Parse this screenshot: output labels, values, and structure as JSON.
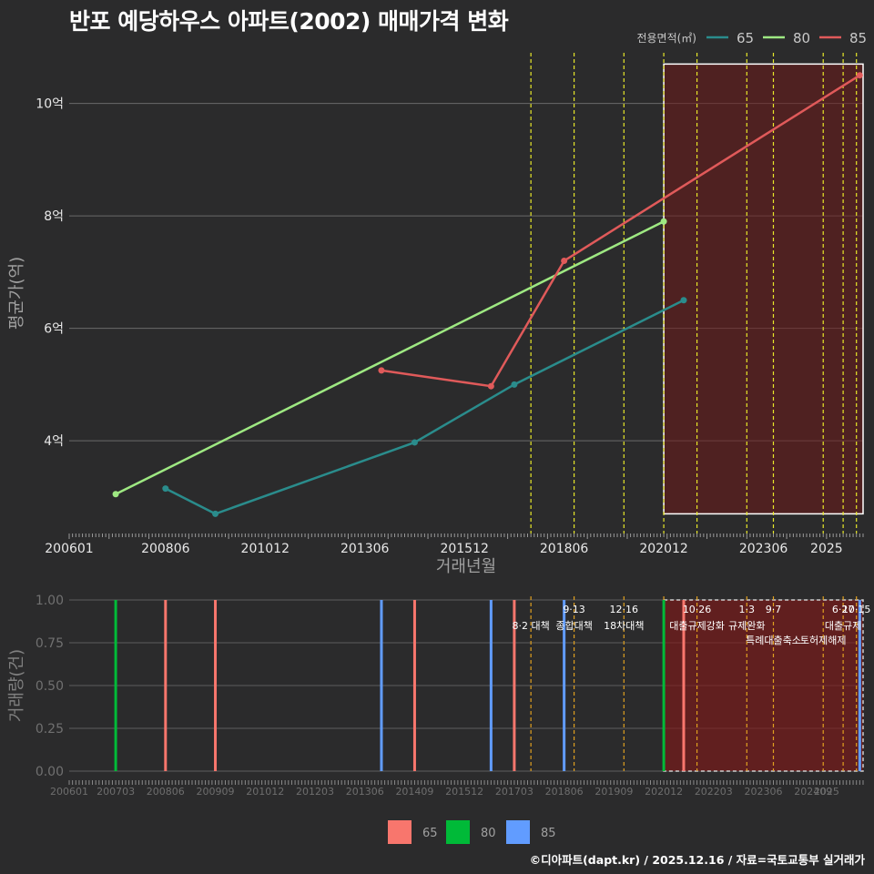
{
  "title": "반포 예당하우스 아파트(2002) 매매가격 변화",
  "caption": "©디아파트(dapt.kr) / 2025.12.16 / 자료=국토교통부 실거래가",
  "colors": {
    "s65": "#2a8c8c",
    "s80": "#9ee882",
    "s85": "#e05a5a",
    "b65": "#f8766d",
    "b80": "#00ba38",
    "b85": "#619cff",
    "policy": "#e8e82a",
    "policy_bottom": "#e0a020"
  },
  "chart_data": [
    {
      "type": "line",
      "title": "반포 예당하우스 아파트(2002) 매매가격 변화",
      "xlabel": "거래년월",
      "ylabel": "평균가(억)",
      "legend_title": "전용면적(㎡)",
      "legend_position": "top-right",
      "x_tick_labels": [
        "200601",
        "200806",
        "201012",
        "201306",
        "201512",
        "201806",
        "202012",
        "202306",
        "2025"
      ],
      "y_ticks": [
        4,
        6,
        8,
        10
      ],
      "y_tick_labels": [
        "4억",
        "6억",
        "8억",
        "10억"
      ],
      "ylim": [
        2.35,
        10.9
      ],
      "series": [
        {
          "name": "65",
          "color": "#2a8c8c",
          "points": [
            [
              "2008-06",
              3.15
            ],
            [
              "2009-09",
              2.7
            ],
            [
              "2014-09",
              3.97
            ],
            [
              "2017-03",
              5.0
            ],
            [
              "2021-06",
              6.5
            ]
          ]
        },
        {
          "name": "80",
          "color": "#9ee882",
          "points": [
            [
              "2007-03",
              3.05
            ],
            [
              "2020-12",
              7.9
            ]
          ]
        },
        {
          "name": "85",
          "color": "#e05a5a",
          "points": [
            [
              "2013-11",
              5.25
            ],
            [
              "2016-08",
              4.97
            ],
            [
              "2018-06",
              7.2
            ],
            [
              "2025-11",
              10.5
            ]
          ]
        }
      ],
      "policy_dates": [
        "2017-08",
        "2018-09",
        "2019-12",
        "2020-12",
        "2021-10",
        "2023-01",
        "2023-09",
        "2024-12",
        "2025-06",
        "2025-10"
      ],
      "highlight": {
        "from": "2020-12",
        "to": "2025-12"
      }
    },
    {
      "type": "bar",
      "ylabel": "거래량(건)",
      "y_ticks": [
        0.0,
        0.25,
        0.5,
        0.75,
        1.0
      ],
      "y_tick_labels": [
        "0.00",
        "0.25",
        "0.50",
        "0.75",
        "1.00"
      ],
      "ylim": [
        0,
        1.0
      ],
      "x_tick_labels": [
        "200601",
        "200703",
        "200806",
        "200909",
        "201012",
        "201203",
        "201306",
        "201409",
        "201512",
        "201703",
        "201806",
        "201909",
        "202012",
        "202203",
        "202306",
        "202409",
        "2025"
      ],
      "legend_position": "bottom",
      "series_names": [
        "65",
        "80",
        "85"
      ],
      "bars": [
        {
          "date": "2007-03",
          "series": "80",
          "value": 1
        },
        {
          "date": "2008-06",
          "series": "65",
          "value": 1
        },
        {
          "date": "2009-09",
          "series": "65",
          "value": 1
        },
        {
          "date": "2013-11",
          "series": "85",
          "value": 1
        },
        {
          "date": "2014-09",
          "series": "65",
          "value": 1
        },
        {
          "date": "2016-08",
          "series": "85",
          "value": 1
        },
        {
          "date": "2017-03",
          "series": "65",
          "value": 1
        },
        {
          "date": "2018-06",
          "series": "85",
          "value": 1
        },
        {
          "date": "2020-12",
          "series": "80",
          "value": 1
        },
        {
          "date": "2021-06",
          "series": "65",
          "value": 1
        },
        {
          "date": "2025-11",
          "series": "85",
          "value": 1
        }
      ],
      "annotations": [
        {
          "date": "2017-08",
          "date_label": "",
          "text": "8·2 대책",
          "row": 1
        },
        {
          "date": "2018-09",
          "date_label": "9·13",
          "text": "종합대책",
          "row": 1
        },
        {
          "date": "2019-12",
          "date_label": "12·16",
          "text": "18차대책",
          "row": 1
        },
        {
          "date": "2021-10",
          "date_label": "10·26",
          "text": "대출규제강화",
          "row": 1
        },
        {
          "date": "2023-01",
          "date_label": "1·3",
          "text": "규제완화",
          "row": 1
        },
        {
          "date": "2023-09",
          "date_label": "9·7",
          "text": "특례대출축소",
          "row": 2
        },
        {
          "date": "2024-12",
          "date_label": "",
          "text": "토허제해제",
          "row": 2
        },
        {
          "date": "2025-06",
          "date_label": "6·27",
          "text": "대출규제",
          "row": 1
        },
        {
          "date": "2025-10",
          "date_label": "10·15",
          "text": "",
          "row": 1
        }
      ]
    }
  ]
}
